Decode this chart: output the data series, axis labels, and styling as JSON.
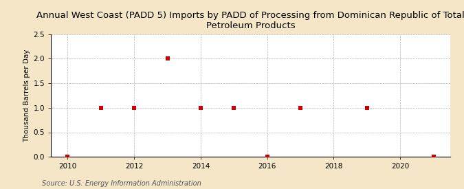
{
  "title": "Annual West Coast (PADD 5) Imports by PADD of Processing from Dominican Republic of Total\nPetroleum Products",
  "ylabel": "Thousand Barrels per Day",
  "source": "Source: U.S. Energy Information Administration",
  "background_color": "#f5e6c8",
  "plot_background_color": "#ffffff",
  "x_data": [
    2010,
    2011,
    2012,
    2013,
    2014,
    2015,
    2016,
    2017,
    2019,
    2021
  ],
  "y_data": [
    0.0,
    1.0,
    1.0,
    2.0,
    1.0,
    1.0,
    0.0,
    1.0,
    1.0,
    0.0
  ],
  "marker_color": "#cc0000",
  "marker_size": 4,
  "xlim": [
    2009.5,
    2021.5
  ],
  "ylim": [
    0,
    2.5
  ],
  "yticks": [
    0.0,
    0.5,
    1.0,
    1.5,
    2.0,
    2.5
  ],
  "xticks": [
    2010,
    2012,
    2014,
    2016,
    2018,
    2020
  ],
  "grid_color": "#aaaaaa",
  "title_fontsize": 9.5,
  "label_fontsize": 7.5,
  "tick_fontsize": 7.5,
  "source_fontsize": 7
}
